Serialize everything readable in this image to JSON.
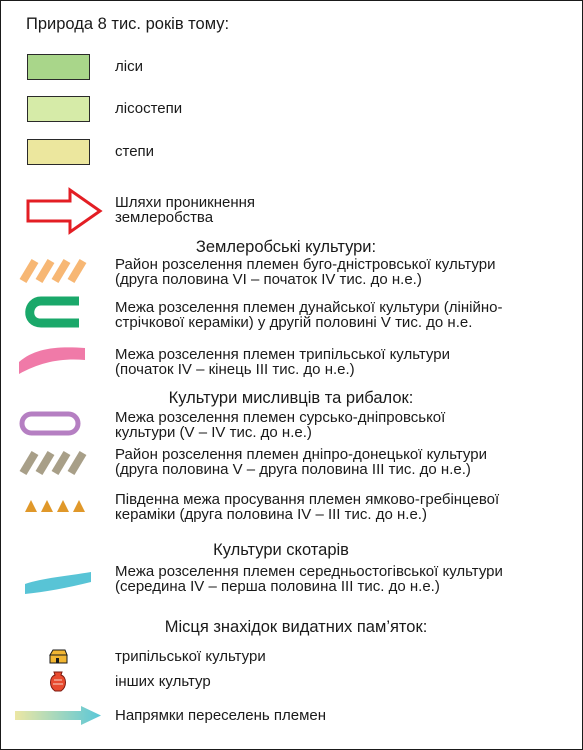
{
  "legend": {
    "title": "Природа 8 тис. років тому:",
    "zones": [
      {
        "label": "ліси",
        "color": "#a9d68a"
      },
      {
        "label": "лісостепи",
        "color": "#d6eba8"
      },
      {
        "label": "степи",
        "color": "#ece79e"
      }
    ],
    "routes": {
      "line1": "Шляхи проникнення",
      "line2": "землеробства",
      "color": "#e31e24"
    },
    "farming_heading": "Землеробські культури:",
    "farming": [
      {
        "line1": "Район розселення племен буго-дністровської культури",
        "line2": "(друга половина VI – початок IV тис. до н.е.)",
        "color": "#f7b774"
      },
      {
        "line1": "Межа розселення племен дунайської культури (лінійно-",
        "line2": "стрічкової кераміки) у другій половині V тис. до н.е.",
        "color": "#1aa86a"
      },
      {
        "line1": "Межа розселення племен трипільської культури",
        "line2": "(початок IV – кінець III тис. до н.е.)",
        "color": "#f07aa8"
      }
    ],
    "hunting_heading": "Культури мисливців та рибалок:",
    "hunting": [
      {
        "line1": "Межа розселення племен сурсько-дніпровської",
        "line2": "культури (V – IV тис. до н.е.)",
        "color": "#b57fc2"
      },
      {
        "line1": "Район розселення племен дніпро-донецької культури",
        "line2": "(друга половина V – друга половина III тис. до н.е.)",
        "color": "#a89f88"
      },
      {
        "line1": "Південна межа просування  племен ямково-гребінцевої",
        "line2": "кераміки (друга половина IV – III тис. до н.е.)",
        "color": "#e0982a"
      }
    ],
    "herders_heading": "Культури скотарів",
    "herders": [
      {
        "line1": "Межа розселення племен середньостогівської культури",
        "line2": "(середина IV – перша половина III тис. до н.е.)",
        "color": "#58c4d6"
      }
    ],
    "finds_heading": "Місця знахідок видатних пам’яток:",
    "finds": [
      {
        "label": "трипільської культури",
        "color": "#f2b632"
      },
      {
        "label": "інших культур",
        "color": "#e84a2e"
      }
    ],
    "migration": {
      "label": "Напрямки переселень племен",
      "color_start": "#ece7a4",
      "color_end": "#5ac7d8"
    }
  }
}
